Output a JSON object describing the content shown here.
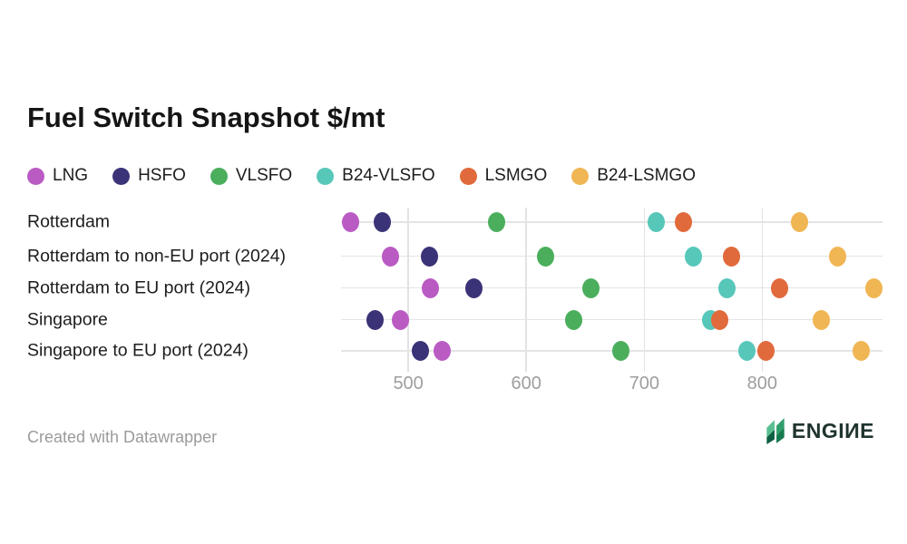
{
  "title": "Fuel Switch Snapshot $/mt",
  "chart_data": {
    "type": "scatter",
    "title": "Fuel Switch Snapshot $/mt",
    "unit": "$/mt",
    "legend_position": "top",
    "grid": "vertical",
    "categories": [
      "Rotterdam",
      "Rotterdam to non-EU port (2024)",
      "Rotterdam to EU port (2024)",
      "Singapore",
      "Singapore to EU port (2024)"
    ],
    "series": [
      {
        "name": "LNG",
        "color": "#ba5bc4",
        "values": [
          451,
          485,
          519,
          493,
          529
        ]
      },
      {
        "name": "HSFO",
        "color": "#3b3377",
        "values": [
          478,
          518,
          556,
          472,
          510
        ]
      },
      {
        "name": "VLSFO",
        "color": "#4bae5d",
        "values": [
          575,
          616,
          655,
          640,
          680
        ]
      },
      {
        "name": "B24-VLSFO",
        "color": "#57c7ba",
        "values": [
          710,
          742,
          770,
          756,
          787
        ]
      },
      {
        "name": "LSMGO",
        "color": "#e16a3c",
        "values": [
          733,
          774,
          815,
          764,
          803
        ]
      },
      {
        "name": "B24-LSMGO",
        "color": "#f0b654",
        "values": [
          832,
          864,
          895,
          850,
          884
        ]
      }
    ],
    "x_ticks": [
      500,
      600,
      700,
      800
    ],
    "xlim": [
      443,
      902
    ]
  },
  "footer": {
    "attribution": "Created with Datawrapper",
    "brand_text": "ENGIИE"
  },
  "icons": {
    "brand_icon": "engine-leaf-mark",
    "brand_icon_colors": [
      "#5abf90",
      "#0d5f41",
      "#2f9e6c",
      "#157a4f"
    ]
  }
}
